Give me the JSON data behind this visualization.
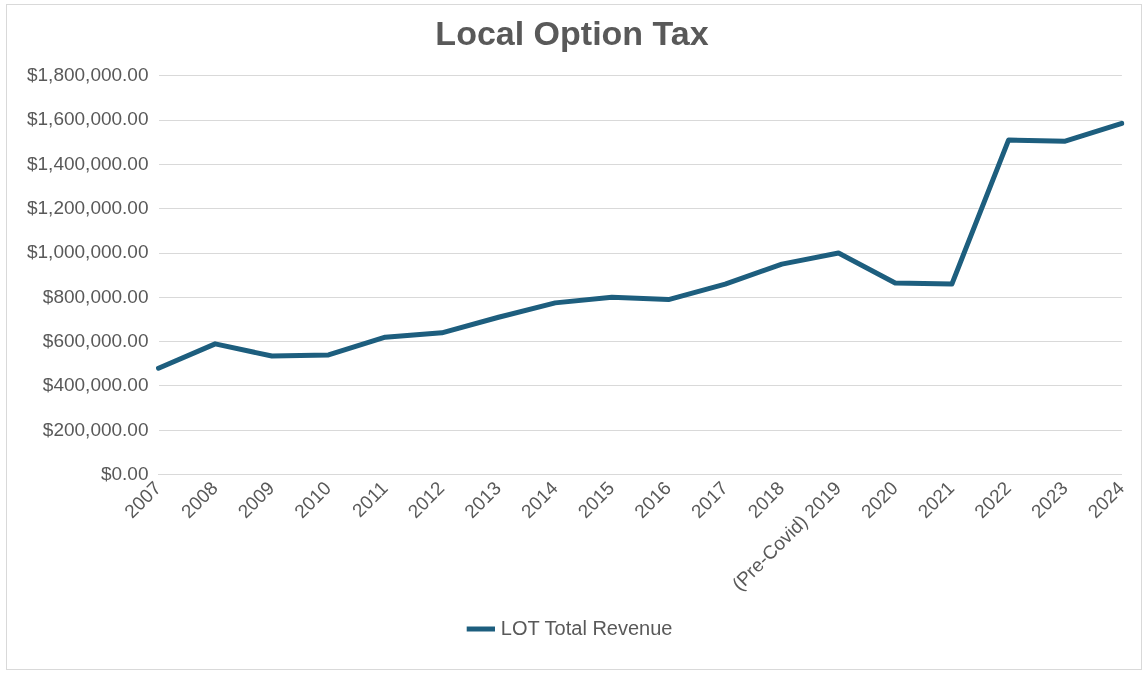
{
  "chart_data": {
    "type": "line",
    "title": "Local Option Tax",
    "categories": [
      "2007",
      "2008",
      "2009",
      "2010",
      "2011",
      "2012",
      "2013",
      "2014",
      "2015",
      "2016",
      "2017",
      "2018",
      "(Pre-Covid) 2019",
      "2020",
      "2021",
      "2022",
      "2023",
      "2024"
    ],
    "series": [
      {
        "name": "LOT Total Revenue",
        "color": "#1d5e7e",
        "values": [
          480000,
          590000,
          535000,
          540000,
          620000,
          640000,
          710000,
          775000,
          800000,
          790000,
          860000,
          950000,
          1000000,
          865000,
          860000,
          1510000,
          1505000,
          1585000
        ]
      }
    ],
    "ylim": [
      0,
      1800000
    ],
    "yticks": [
      {
        "value": 0,
        "label": "$0.00"
      },
      {
        "value": 200000,
        "label": "$200,000.00"
      },
      {
        "value": 400000,
        "label": "$400,000.00"
      },
      {
        "value": 600000,
        "label": "$600,000.00"
      },
      {
        "value": 800000,
        "label": "$800,000.00"
      },
      {
        "value": 1000000,
        "label": "$1,000,000.00"
      },
      {
        "value": 1200000,
        "label": "$1,200,000.00"
      },
      {
        "value": 1400000,
        "label": "$1,400,000.00"
      },
      {
        "value": 1600000,
        "label": "$1,600,000.00"
      },
      {
        "value": 1800000,
        "label": "$1,800,000.00"
      }
    ],
    "grid": "y",
    "legend": "bottom",
    "marker": "none",
    "line_style": "solid"
  }
}
